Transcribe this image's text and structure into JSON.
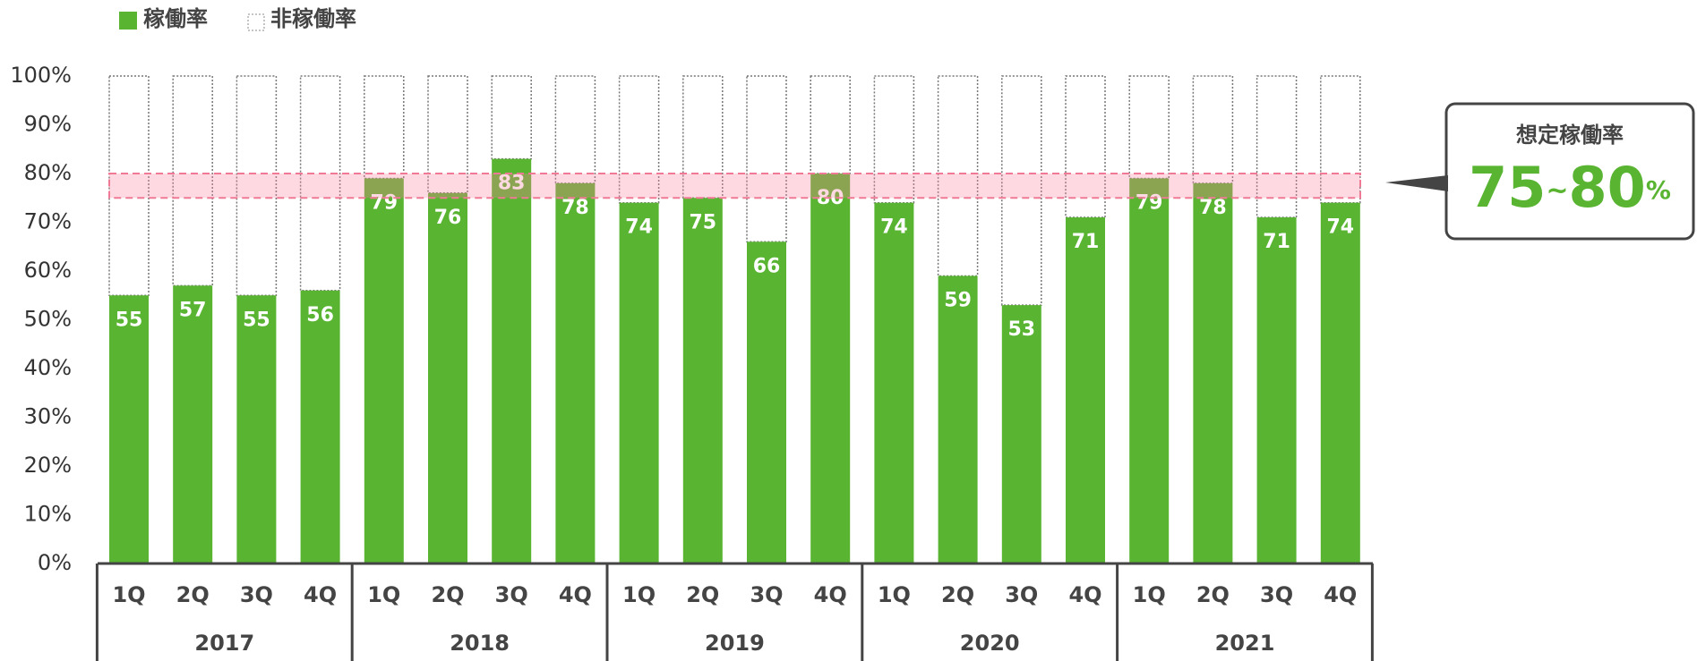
{
  "chart_data": {
    "type": "stacked_bar",
    "groups": [
      {
        "name": "2017",
        "categories": [
          "1Q",
          "2Q",
          "3Q",
          "4Q"
        ]
      },
      {
        "name": "2018",
        "categories": [
          "1Q",
          "2Q",
          "3Q",
          "4Q"
        ]
      },
      {
        "name": "2019",
        "categories": [
          "1Q",
          "2Q",
          "3Q",
          "4Q"
        ]
      },
      {
        "name": "2020",
        "categories": [
          "1Q",
          "2Q",
          "3Q",
          "4Q"
        ]
      },
      {
        "name": "2021",
        "categories": [
          "1Q",
          "2Q",
          "3Q",
          "4Q"
        ]
      }
    ],
    "series": [
      {
        "name": "稼働率",
        "color": "#58b431",
        "values": [
          55,
          57,
          55,
          56,
          79,
          76,
          83,
          78,
          74,
          75,
          66,
          80,
          74,
          59,
          53,
          71,
          79,
          78,
          71,
          74
        ]
      },
      {
        "name": "非稼働率",
        "color": "#ffffff",
        "values": [
          45,
          43,
          45,
          44,
          21,
          24,
          17,
          22,
          26,
          25,
          34,
          20,
          26,
          41,
          47,
          29,
          21,
          22,
          29,
          26
        ]
      }
    ],
    "ylim": [
      0,
      100
    ],
    "yticks": [
      {
        "value": 0,
        "label": "0%"
      },
      {
        "value": 10,
        "label": "10%"
      },
      {
        "value": 20,
        "label": "20%"
      },
      {
        "value": 30,
        "label": "30%"
      },
      {
        "value": 40,
        "label": "40%"
      },
      {
        "value": 50,
        "label": "50%"
      },
      {
        "value": 60,
        "label": "60%"
      },
      {
        "value": 70,
        "label": "70%"
      },
      {
        "value": 80,
        "label": "80%"
      },
      {
        "value": 90,
        "label": "90%"
      },
      {
        "value": 100,
        "label": "100%"
      }
    ],
    "target_range": [
      75,
      80
    ],
    "callout": {
      "title": "想定稼働率",
      "separator": "~",
      "unit": "%"
    },
    "legend": "top-left"
  }
}
